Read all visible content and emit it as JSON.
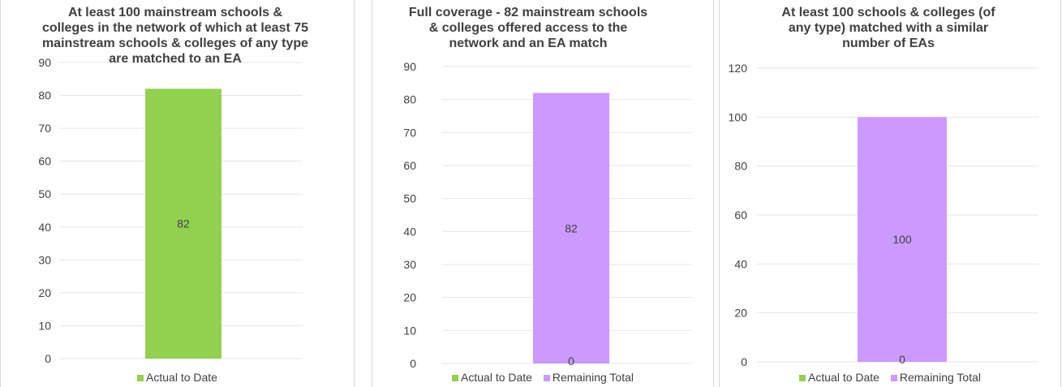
{
  "colors": {
    "actual": "#92d050",
    "remaining": "#cc99ff",
    "grid": "#e6e6e6",
    "text": "#404040"
  },
  "chart_data": [
    {
      "type": "bar",
      "title": "At least 100 mainstream schools & colleges in the network of which at least 75 mainstream schools & colleges of any type are matched to an EA",
      "categories": [
        ""
      ],
      "series": [
        {
          "name": "Actual to Date",
          "values": [
            82
          ],
          "color": "#92d050"
        }
      ],
      "stacked": true,
      "data_labels": [
        "82"
      ],
      "ylim": [
        0,
        90
      ],
      "yticks": [
        0,
        10,
        20,
        30,
        40,
        50,
        60,
        70,
        80,
        90
      ],
      "xlabel": "",
      "ylabel": "",
      "grid": true,
      "legend": "bottom"
    },
    {
      "type": "bar",
      "title": "Full coverage - 82 mainstream schools & colleges offered access to the network and an EA match",
      "categories": [
        ""
      ],
      "series": [
        {
          "name": "Actual to Date",
          "values": [
            0
          ],
          "color": "#92d050"
        },
        {
          "name": "Remaining Total",
          "values": [
            82
          ],
          "color": "#cc99ff"
        }
      ],
      "stacked": true,
      "data_labels": [
        "0",
        "82"
      ],
      "ylim": [
        0,
        90
      ],
      "yticks": [
        0,
        10,
        20,
        30,
        40,
        50,
        60,
        70,
        80,
        90
      ],
      "xlabel": "",
      "ylabel": "",
      "grid": true,
      "legend": "bottom"
    },
    {
      "type": "bar",
      "title": "At least 100 schools & colleges (of any type) matched with a similar number of EAs",
      "categories": [
        ""
      ],
      "series": [
        {
          "name": "Actual to Date",
          "values": [
            0
          ],
          "color": "#92d050"
        },
        {
          "name": "Remaining Total",
          "values": [
            100
          ],
          "color": "#cc99ff"
        }
      ],
      "stacked": true,
      "data_labels": [
        "0",
        "100"
      ],
      "ylim": [
        0,
        120
      ],
      "yticks": [
        0,
        20,
        40,
        60,
        80,
        100,
        120
      ],
      "xlabel": "",
      "ylabel": "",
      "grid": true,
      "legend": "bottom"
    }
  ]
}
